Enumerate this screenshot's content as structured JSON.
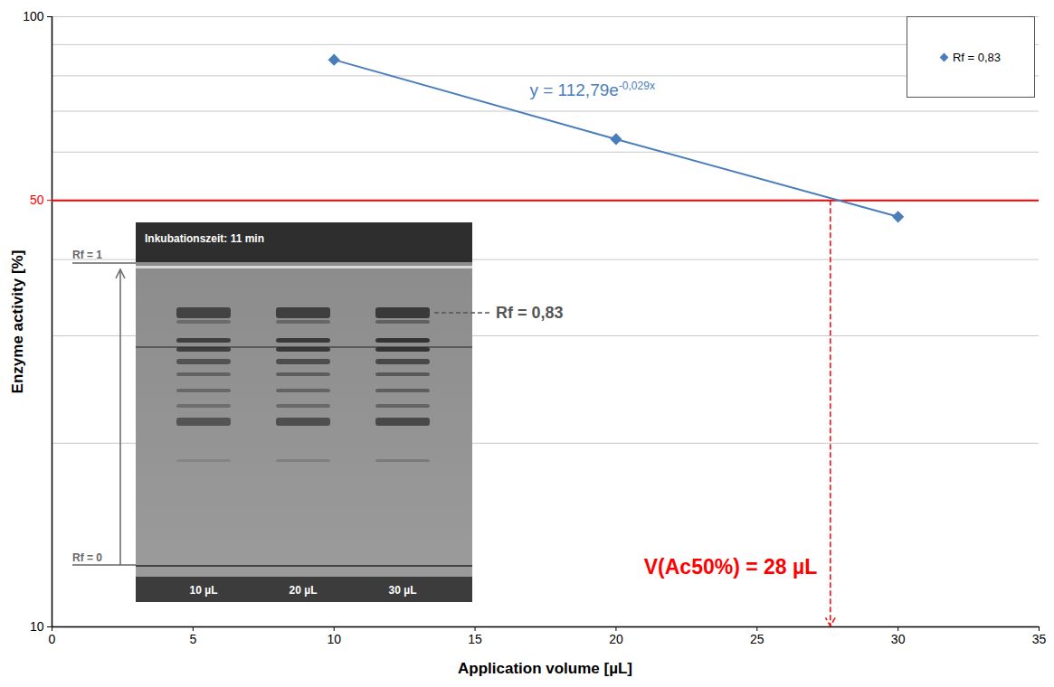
{
  "chart_data": {
    "type": "line",
    "x_label": "Application volume [µL]",
    "y_label": "Enzyme activity [%]",
    "x": [
      10,
      20,
      30
    ],
    "series": [
      {
        "name": "Rf = 0,83",
        "color": "#4a7ebb",
        "marker": "diamond",
        "values": [
          85,
          63,
          47
        ]
      }
    ],
    "xlim": [
      0,
      35
    ],
    "xticks": [
      0,
      5,
      10,
      15,
      20,
      25,
      30,
      35
    ],
    "ylim": [
      10,
      100
    ],
    "yticks": [
      10,
      50,
      100
    ],
    "log": "y",
    "grid": true,
    "legend": "top-right",
    "trendline_label": {
      "text": "y = 112,79e",
      "exponent": "-0,029x"
    },
    "reference_line": {
      "y": 50,
      "color": "#ff0000"
    },
    "marker_line": {
      "x": 27.6,
      "label": "V(Ac50%) = 28 µL",
      "color": "#ff0000"
    },
    "inset": {
      "title": "Inkubationszeit: 11 min",
      "rf_top": "Rf = 1",
      "rf_bottom": "Rf = 0",
      "band_label": "Rf = 0,83",
      "lanes": [
        "10 µL",
        "20 µL",
        "30 µL"
      ]
    }
  }
}
